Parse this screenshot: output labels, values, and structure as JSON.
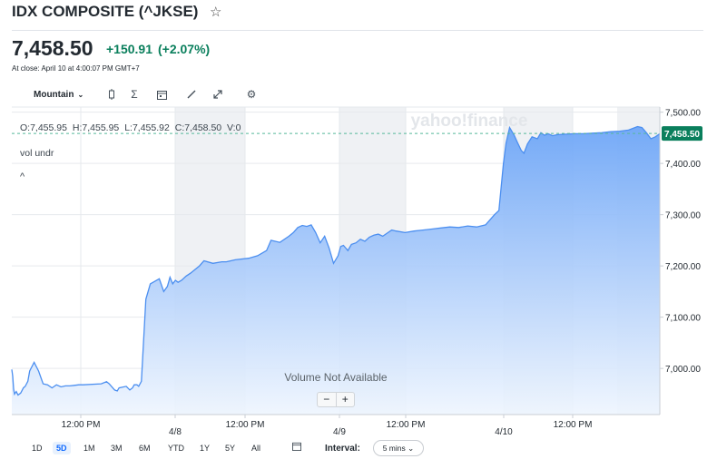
{
  "header": {
    "title": "IDX COMPOSITE (^JKSE)",
    "watchlist_icon": "star-icon",
    "price": "7,458.50",
    "change": "+150.91",
    "change_pct": "(+2.07%)",
    "close_info": "At close: April 10 at 4:00:07 PM GMT+7"
  },
  "toolbar": {
    "chart_type": "Mountain",
    "icons": [
      "candle-icon",
      "sigma-icon",
      "calendar-icon",
      "pencil-icon",
      "expand-icon",
      "gear-icon"
    ]
  },
  "legend": {
    "o": "O:7,455.95",
    "h": "H:7,455.95",
    "l": "L:7,455.92",
    "c": "C:7,458.50",
    "v": "V:0",
    "vol_undr": "vol undr",
    "collapse": "^"
  },
  "watermark": "yahoo!finance",
  "volume_message": "Volume Not Available",
  "zoom": {
    "minus": "−",
    "plus": "+"
  },
  "ranges": [
    "1D",
    "5D",
    "1M",
    "3M",
    "6M",
    "YTD",
    "1Y",
    "5Y",
    "All"
  ],
  "active_range": "5D",
  "interval": {
    "label": "Interval:",
    "value": "5 mins"
  },
  "colors": {
    "line": "#4c8ff0",
    "fill_top": "#6ea6f7",
    "fill_bottom": "#eef5fe",
    "price_tag": "#0a7f5c",
    "positive": "#0a7f5c",
    "session_shade": "#eff1f4"
  },
  "chart_data": {
    "type": "area",
    "ylim": [
      6910,
      7510
    ],
    "y_ticks": [
      7500,
      7400,
      7300,
      7200,
      7100,
      7000
    ],
    "y_tick_labels": [
      "7,500.00",
      "7,400.00",
      "7,300.00",
      "7,200.00",
      "7,100.00",
      "7,000.00"
    ],
    "x_tick_labels": [
      "12:00 PM",
      "4/8",
      "12:00 PM",
      "4/9",
      "12:00 PM",
      "4/10",
      "12:00 PM"
    ],
    "last_price": 7458.5,
    "last_price_label": "7,458.50",
    "series": [
      {
        "x": [
          0,
          1,
          2,
          3,
          5,
          7,
          10,
          13,
          15,
          18,
          20,
          25,
          30,
          35,
          40,
          45,
          50,
          55,
          60,
          65,
          70,
          75,
          80,
          100,
          106,
          109,
          115,
          118,
          120,
          128,
          132,
          135,
          137,
          140,
          142,
          145,
          150,
          155,
          165,
          170,
          174,
          177,
          180,
          183,
          186,
          190,
          195,
          200,
          205,
          210,
          215,
          225,
          235,
          240,
          245,
          250,
          265,
          275,
          285,
          290,
          300,
          310,
          315,
          320,
          325,
          330,
          335,
          340,
          345,
          350,
          355,
          360,
          365,
          368,
          371,
          376,
          380,
          385,
          390,
          395,
          400,
          405,
          410,
          415,
          420,
          425,
          430,
          440,
          450,
          460,
          470,
          480,
          490,
          500,
          510,
          520,
          530,
          535,
          540,
          545,
          550,
          553,
          557,
          562,
          566,
          570,
          573,
          577,
          582,
          588,
          592,
          596,
          600,
          605,
          610,
          620,
          630,
          640,
          650,
          660,
          670,
          680,
          690,
          700,
          705,
          710,
          715,
          720,
          725
        ],
        "y": [
          6998,
          6985,
          6960,
          6950,
          6955,
          6948,
          6952,
          6962,
          6965,
          6975,
          6995,
          7012,
          6995,
          6970,
          6968,
          6962,
          6968,
          6964,
          6966,
          6966,
          6967,
          6968,
          6968,
          6970,
          6974,
          6970,
          6958,
          6956,
          6962,
          6965,
          6958,
          6962,
          6968,
          6968,
          6965,
          6975,
          7135,
          7165,
          7175,
          7150,
          7160,
          7178,
          7165,
          7172,
          7168,
          7172,
          7180,
          7186,
          7193,
          7200,
          7210,
          7205,
          7208,
          7208,
          7210,
          7212,
          7215,
          7220,
          7230,
          7250,
          7246,
          7258,
          7265,
          7275,
          7279,
          7277,
          7280,
          7265,
          7245,
          7258,
          7235,
          7205,
          7220,
          7238,
          7240,
          7230,
          7242,
          7245,
          7252,
          7248,
          7256,
          7260,
          7262,
          7258,
          7264,
          7270,
          7268,
          7265,
          7268,
          7270,
          7272,
          7274,
          7276,
          7275,
          7278,
          7276,
          7280,
          7290,
          7300,
          7308,
          7400,
          7440,
          7470,
          7455,
          7440,
          7425,
          7420,
          7438,
          7452,
          7448,
          7460,
          7455,
          7458,
          7454,
          7456,
          7457,
          7458,
          7458,
          7459,
          7460,
          7462,
          7463,
          7465,
          7472,
          7470,
          7460,
          7448,
          7452,
          7458
        ]
      }
    ]
  }
}
